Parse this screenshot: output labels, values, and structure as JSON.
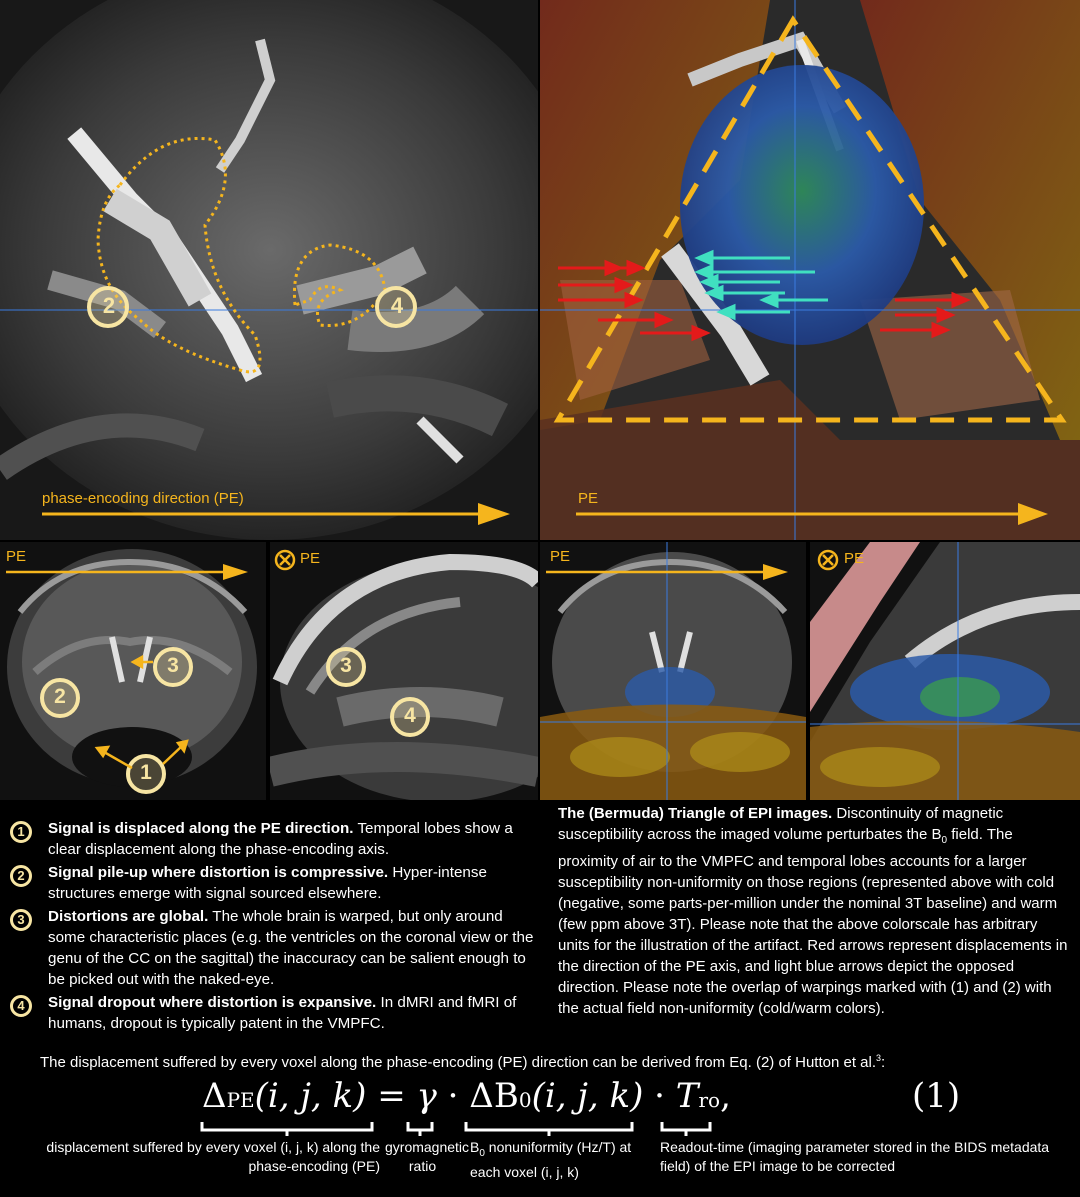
{
  "panels": {
    "top_left": {
      "pe_label": "phase-encoding direction (PE)",
      "markers": [
        "2",
        "4"
      ]
    },
    "top_right": {
      "pe_label": "PE"
    },
    "bottom": {
      "coronal_pe": "PE",
      "sagittal_pe": "PE",
      "coronal_markers": [
        "3",
        "2",
        "1"
      ],
      "sagittal_markers": [
        "3",
        "4"
      ],
      "overlay_coronal_pe": "PE",
      "overlay_sagittal_pe": "PE"
    }
  },
  "legend": [
    {
      "num": "1",
      "title": "Signal is displaced along the PE direction.",
      "text": " Temporal lobes show a clear displacement along the phase-encoding axis."
    },
    {
      "num": "2",
      "title": "Signal pile-up where distortion is compressive.",
      "text": " Hyper-intense structures emerge with signal sourced elsewhere."
    },
    {
      "num": "3",
      "title": "Distortions are global.",
      "text": " The whole brain is warped, but only around some characteristic places (e.g. the ventricles on the coronal view or the genu of the CC on the sagittal) the inaccuracy can be salient enough to be picked out with the naked-eye."
    },
    {
      "num": "4",
      "title": "Signal dropout where distortion is expansive.",
      "text": " In dMRI and fMRI of humans, dropout is typically patent in the VMPFC."
    }
  ],
  "triangle_caption": {
    "title": "The (Bermuda) Triangle of EPI images.",
    "text_a": " Discontinuity of magnetic susceptibility across the imaged volume perturbates the B",
    "text_sub": "0",
    "text_b": " field. The proximity of air to the VMPFC and temporal lobes accounts for a larger susceptibility non-uniformity on those regions (represented above with cold (negative, some parts-per-million under the nominal 3T baseline) and warm (few ppm above 3T). Please note that the above colorscale has arbitrary units for the illustration of the artifact. Red arrows represent displacements in the direction of the PE axis, and light blue arrows depict the opposed direction. Please note the overlap of warpings marked with (1) and (2) with the actual field non-uniformity (cold/warm colors)."
  },
  "equation_intro": {
    "text": "The displacement suffered by every voxel along the phase-encoding (PE) direction can be derived from Eq. (2) of Hutton et al.",
    "sup": "3",
    "end": ":"
  },
  "equation": {
    "lhs": "Δ",
    "lhs_sub": "PE",
    "lhs_args": "(i, j, k)",
    "eq": "=",
    "gamma": "γ",
    "dot1": "·",
    "delta": "ΔB",
    "delta_sub": "0",
    "delta_args": "(i, j, k)",
    "dot2": "·",
    "T": "T",
    "T_sub": "ro",
    "comma": ",",
    "number": "(1)"
  },
  "annotations": {
    "displacement": "displacement suffered by every voxel (i, j, k) along the phase-encoding (PE)",
    "gyro": "gyromagnetic ratio",
    "b0_a": "B",
    "b0_sub": "0",
    "b0_b": " nonuniformity (Hz/T) at each voxel (i, j, k)",
    "readout": "Readout-time (imaging parameter stored in the BIDS metadata field) of the EPI image to be corrected"
  },
  "colors": {
    "pe_arrow": "#f5b51d",
    "marker": "#f7e5a3",
    "red_arrow": "#e41a1a",
    "cyan_arrow": "#40e0c0",
    "crosshair": "#3a7be0"
  }
}
